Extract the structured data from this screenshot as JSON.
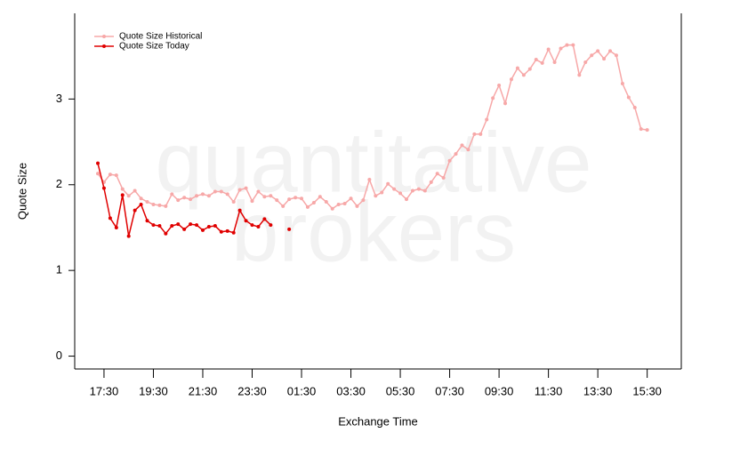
{
  "chart_data": {
    "type": "line",
    "watermark": [
      "quantitative",
      "brokers"
    ],
    "xlabel": "Exchange Time",
    "ylabel": "Quote Size",
    "categories": [
      null,
      "17:30",
      null,
      null,
      null,
      null,
      null,
      null,
      null,
      "19:30",
      null,
      null,
      null,
      null,
      null,
      null,
      null,
      "21:30",
      null,
      null,
      null,
      null,
      null,
      null,
      null,
      "23:30",
      null,
      null,
      null,
      null,
      null,
      null,
      null,
      "01:30",
      null,
      null,
      null,
      null,
      null,
      null,
      null,
      "03:30",
      null,
      null,
      null,
      null,
      null,
      null,
      null,
      "05:30",
      null,
      null,
      null,
      null,
      null,
      null,
      null,
      "07:30",
      null,
      null,
      null,
      null,
      null,
      null,
      null,
      "09:30",
      null,
      null,
      null,
      null,
      null,
      null,
      null,
      "11:30",
      null,
      null,
      null,
      null,
      null,
      null,
      null,
      "13:30",
      null,
      null,
      null,
      null,
      null,
      null,
      null,
      "15:30"
    ],
    "series": [
      {
        "name": "Quote Size Historical",
        "color": "#f7a8a8",
        "values": [
          2.13,
          2.03,
          2.12,
          2.11,
          1.95,
          1.87,
          1.93,
          1.84,
          1.8,
          1.77,
          1.76,
          1.75,
          1.89,
          1.82,
          1.85,
          1.83,
          1.87,
          1.89,
          1.87,
          1.92,
          1.92,
          1.89,
          1.8,
          1.94,
          1.96,
          1.81,
          1.92,
          1.86,
          1.87,
          1.82,
          1.75,
          1.83,
          1.85,
          1.84,
          1.74,
          1.79,
          1.86,
          1.8,
          1.72,
          1.77,
          1.78,
          1.84,
          1.75,
          1.82,
          2.06,
          1.87,
          1.91,
          2.01,
          1.95,
          1.9,
          1.83,
          1.93,
          1.95,
          1.93,
          2.03,
          2.13,
          2.08,
          2.28,
          2.36,
          2.46,
          2.41,
          2.59,
          2.59,
          2.76,
          3.01,
          3.16,
          2.95,
          3.23,
          3.36,
          3.28,
          3.35,
          3.46,
          3.42,
          3.58,
          3.43,
          3.59,
          3.63,
          3.63,
          3.28,
          3.43,
          3.51,
          3.56,
          3.47,
          3.56,
          3.51,
          3.18,
          3.02,
          2.9,
          2.65,
          2.64
        ]
      },
      {
        "name": "Quote Size Today",
        "color": "#e00000",
        "values": [
          2.25,
          1.96,
          1.61,
          1.5,
          1.88,
          1.4,
          1.7,
          1.77,
          1.58,
          1.53,
          1.52,
          1.43,
          1.52,
          1.54,
          1.48,
          1.54,
          1.53,
          1.47,
          1.51,
          1.52,
          1.45,
          1.46,
          1.44,
          1.7,
          1.58,
          1.53,
          1.51,
          1.6,
          1.53,
          null,
          null,
          1.48,
          null,
          null,
          null,
          null,
          null,
          null,
          null,
          null,
          null,
          null,
          null,
          null,
          null,
          null,
          null,
          null,
          null,
          null,
          null,
          null,
          null,
          null,
          null,
          null,
          null,
          null,
          null,
          null,
          null,
          null,
          null,
          null,
          null,
          null,
          null,
          null,
          null,
          null,
          null,
          null,
          null,
          null,
          null,
          null,
          null,
          null,
          null,
          null,
          null,
          null,
          null,
          null,
          null,
          null,
          null,
          null,
          null,
          null
        ]
      }
    ],
    "ylim": [
      -0.15,
      4.0
    ],
    "yticks": [
      0,
      1,
      2,
      3
    ],
    "legend": "upper left"
  }
}
